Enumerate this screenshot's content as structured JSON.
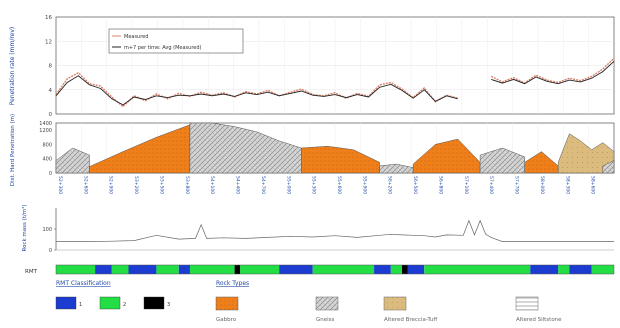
{
  "chart_data": [
    {
      "type": "line",
      "ylabel": "Penetration rate (mm/rev)",
      "ylim": [
        0,
        16
      ],
      "yticks": [
        0,
        4,
        8,
        12,
        16
      ],
      "grid": true,
      "legend": {
        "position": "top-left",
        "entries": [
          "Measured",
          "m+7 per time: Avg (Measured)"
        ]
      },
      "colors": {
        "measured": "#d9806a",
        "avg": "#222222"
      },
      "x": [
        0,
        2,
        4,
        6,
        8,
        10,
        12,
        14,
        16,
        18,
        20,
        22,
        24,
        26,
        28,
        30,
        32,
        34,
        36,
        38,
        40,
        42,
        44,
        46,
        48,
        50,
        52,
        54,
        56,
        58,
        60,
        62,
        64,
        66,
        68,
        70,
        72,
        74,
        76,
        78,
        80,
        82,
        84,
        86,
        88,
        90,
        92,
        94,
        96,
        98,
        100
      ],
      "series": [
        {
          "name": "Measured",
          "values": [
            3.2,
            5.8,
            6.8,
            5.0,
            4.6,
            2.8,
            1.2,
            3.0,
            2.2,
            3.3,
            2.5,
            3.4,
            2.9,
            3.6,
            3.1,
            3.5,
            2.8,
            3.7,
            3.3,
            3.9,
            3.0,
            3.6,
            4.1,
            3.2,
            3.0,
            3.5,
            2.6,
            3.4,
            2.9,
            4.8,
            5.2,
            4.1,
            2.7,
            4.3,
            2.0,
            3.1,
            2.6,
            null,
            null,
            6.2,
            5.3,
            6.0,
            5.1,
            6.4,
            5.6,
            5.2,
            5.9,
            5.5,
            6.2,
            7.4,
            9.2
          ]
        },
        {
          "name": "m+7 per time: Avg (Measured)",
          "values": [
            3.0,
            5.2,
            6.3,
            4.8,
            4.2,
            2.5,
            1.5,
            2.8,
            2.4,
            3.0,
            2.7,
            3.1,
            3.0,
            3.3,
            3.0,
            3.3,
            2.9,
            3.5,
            3.2,
            3.6,
            3.0,
            3.4,
            3.8,
            3.1,
            2.9,
            3.2,
            2.7,
            3.2,
            2.8,
            4.4,
            4.9,
            3.9,
            2.6,
            4.0,
            2.1,
            3.0,
            2.5,
            null,
            null,
            5.7,
            5.1,
            5.7,
            5.0,
            6.1,
            5.4,
            5.0,
            5.6,
            5.3,
            5.9,
            7.0,
            8.7
          ]
        }
      ]
    },
    {
      "type": "area",
      "ylabel": "Dist. Hard Penetration (m)",
      "ylim": [
        0,
        1400
      ],
      "yticks": [
        0,
        400,
        800,
        1200,
        1400
      ],
      "ytick_labels": [
        "0",
        "400",
        "800",
        "1200",
        "1400"
      ],
      "grid": true,
      "tick_labels": [
        "52+300",
        "52+600",
        "52+900",
        "53+200",
        "53+500",
        "53+800",
        "54+100",
        "54+400",
        "54+700",
        "55+000",
        "55+300",
        "55+600",
        "55+900",
        "56+200",
        "56+500",
        "56+800",
        "57+100",
        "57+400",
        "57+700",
        "58+000",
        "58+300",
        "58+600"
      ],
      "segments": [
        {
          "rock": "Gneiss",
          "from": 0,
          "to": 6,
          "values": [
            350,
            700,
            500
          ]
        },
        {
          "rock": "Gabbro",
          "from": 6,
          "to": 24,
          "values": [
            180,
            600,
            1000,
            1350
          ]
        },
        {
          "rock": "Gneiss",
          "from": 24,
          "to": 44,
          "values": [
            1400,
            1420,
            1300,
            1150,
            900,
            700
          ]
        },
        {
          "rock": "Gabbro",
          "from": 44,
          "to": 58,
          "values": [
            700,
            750,
            650,
            300
          ]
        },
        {
          "rock": "Gneiss",
          "from": 58,
          "to": 64,
          "values": [
            200,
            250,
            150
          ]
        },
        {
          "rock": "Gabbro",
          "from": 64,
          "to": 76,
          "values": [
            250,
            800,
            950,
            300
          ]
        },
        {
          "rock": "Gneiss",
          "from": 76,
          "to": 84,
          "values": [
            500,
            700,
            450
          ]
        },
        {
          "rock": "Gabbro",
          "from": 84,
          "to": 90,
          "values": [
            300,
            600,
            200
          ]
        },
        {
          "rock": "Altered Breccia-Tuff",
          "from": 90,
          "to": 100,
          "values": [
            300,
            1100,
            900,
            650,
            850,
            600
          ]
        },
        {
          "rock": "Gneiss",
          "from": 98,
          "to": 100,
          "values": [
            200,
            350
          ]
        }
      ]
    },
    {
      "type": "line",
      "ylabel": "Rock mass (t/m³)",
      "ylim": [
        0,
        200
      ],
      "yticks": [
        0,
        100
      ],
      "grid": false,
      "x": [
        0,
        6,
        10,
        14,
        18,
        22,
        25,
        26,
        27,
        30,
        34,
        38,
        42,
        46,
        50,
        54,
        58,
        60,
        62,
        64,
        66,
        68,
        70,
        73,
        74,
        75,
        76,
        77,
        78,
        80,
        84,
        88,
        92,
        96,
        100
      ],
      "values": [
        40,
        40,
        42,
        45,
        70,
        52,
        55,
        120,
        55,
        58,
        55,
        60,
        65,
        62,
        68,
        60,
        70,
        75,
        72,
        70,
        68,
        62,
        72,
        70,
        140,
        72,
        140,
        75,
        60,
        40,
        40,
        40,
        40,
        40,
        40
      ]
    },
    {
      "type": "heatmap",
      "row_label": "RMT",
      "categories": [
        "1",
        "2",
        "3"
      ],
      "colors": {
        "1": "#1c3bd1",
        "2": "#22dd44",
        "3": "#000000"
      },
      "segments": [
        [
          "2",
          0,
          7
        ],
        [
          "1",
          7,
          10
        ],
        [
          "2",
          10,
          13
        ],
        [
          "1",
          13,
          18
        ],
        [
          "2",
          18,
          22
        ],
        [
          "1",
          22,
          24
        ],
        [
          "2",
          24,
          32
        ],
        [
          "3",
          32,
          33
        ],
        [
          "2",
          33,
          40
        ],
        [
          "1",
          40,
          46
        ],
        [
          "2",
          46,
          57
        ],
        [
          "1",
          57,
          60
        ],
        [
          "2",
          60,
          62
        ],
        [
          "3",
          62,
          63
        ],
        [
          "1",
          63,
          66
        ],
        [
          "2",
          66,
          85
        ],
        [
          "1",
          85,
          90
        ],
        [
          "2",
          90,
          92
        ],
        [
          "1",
          92,
          96
        ],
        [
          "2",
          96,
          100
        ]
      ]
    }
  ],
  "legend": {
    "rmt_title": "RMT Classification",
    "rmt_items": [
      {
        "label": "1",
        "color": "#1c3bd1"
      },
      {
        "label": "2",
        "color": "#22dd44"
      },
      {
        "label": "3",
        "color": "#000000"
      }
    ],
    "rock_title": "Rock Types",
    "rock_items": [
      {
        "name": "Gabbro",
        "pattern": "gabbro"
      },
      {
        "name": "Gneiss",
        "pattern": "gneiss"
      },
      {
        "name": "Altered Breccia-Tuff",
        "pattern": "tuff"
      },
      {
        "name": "Altered Siltstone",
        "pattern": "siltstone"
      }
    ]
  },
  "colors": {
    "gabbro": "#ef7f1a",
    "gneiss": "#c8c8c8",
    "tuff": "#d9b878",
    "axis": "#555555",
    "blue_label": "#1f4aa8"
  }
}
